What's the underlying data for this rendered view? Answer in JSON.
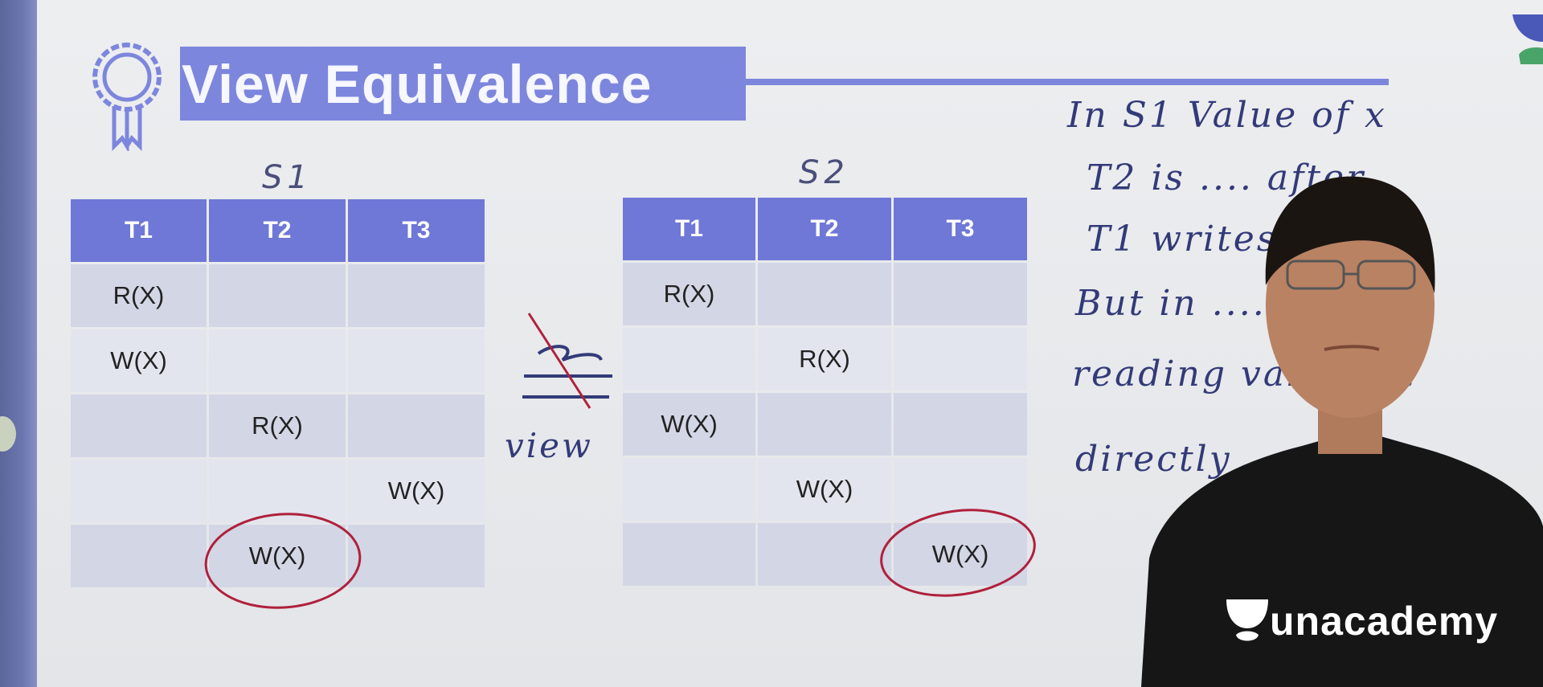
{
  "slide": {
    "title": "View Equivalence"
  },
  "schedules": [
    {
      "label": "S1",
      "columns": [
        "T1",
        "T2",
        "T3"
      ],
      "rows": [
        [
          "R(X)",
          "",
          ""
        ],
        [
          "W(X)",
          "",
          ""
        ],
        [
          "",
          "R(X)",
          ""
        ],
        [
          "",
          "",
          "W(X)"
        ],
        [
          "",
          "W(X)",
          ""
        ]
      ]
    },
    {
      "label": "S2",
      "columns": [
        "T1",
        "T2",
        "T3"
      ],
      "rows": [
        [
          "R(X)",
          "",
          ""
        ],
        [
          "",
          "R(X)",
          ""
        ],
        [
          "W(X)",
          "",
          ""
        ],
        [
          "",
          "W(X)",
          ""
        ],
        [
          "",
          "",
          "W(X)"
        ]
      ]
    }
  ],
  "handwriting": {
    "relation_label": "view",
    "notes": [
      "In S1   Value of x",
      "T2  is  ....  after",
      "T1  writes ....",
      "But  in  ....  is",
      "reading  value ....",
      "directly  ...."
    ]
  },
  "brand": {
    "name": "unacademy"
  },
  "colors": {
    "header": "#6f78d7",
    "title_bar": "#7d86dd",
    "ink": "#323a78",
    "red_ink": "#b0203c"
  }
}
